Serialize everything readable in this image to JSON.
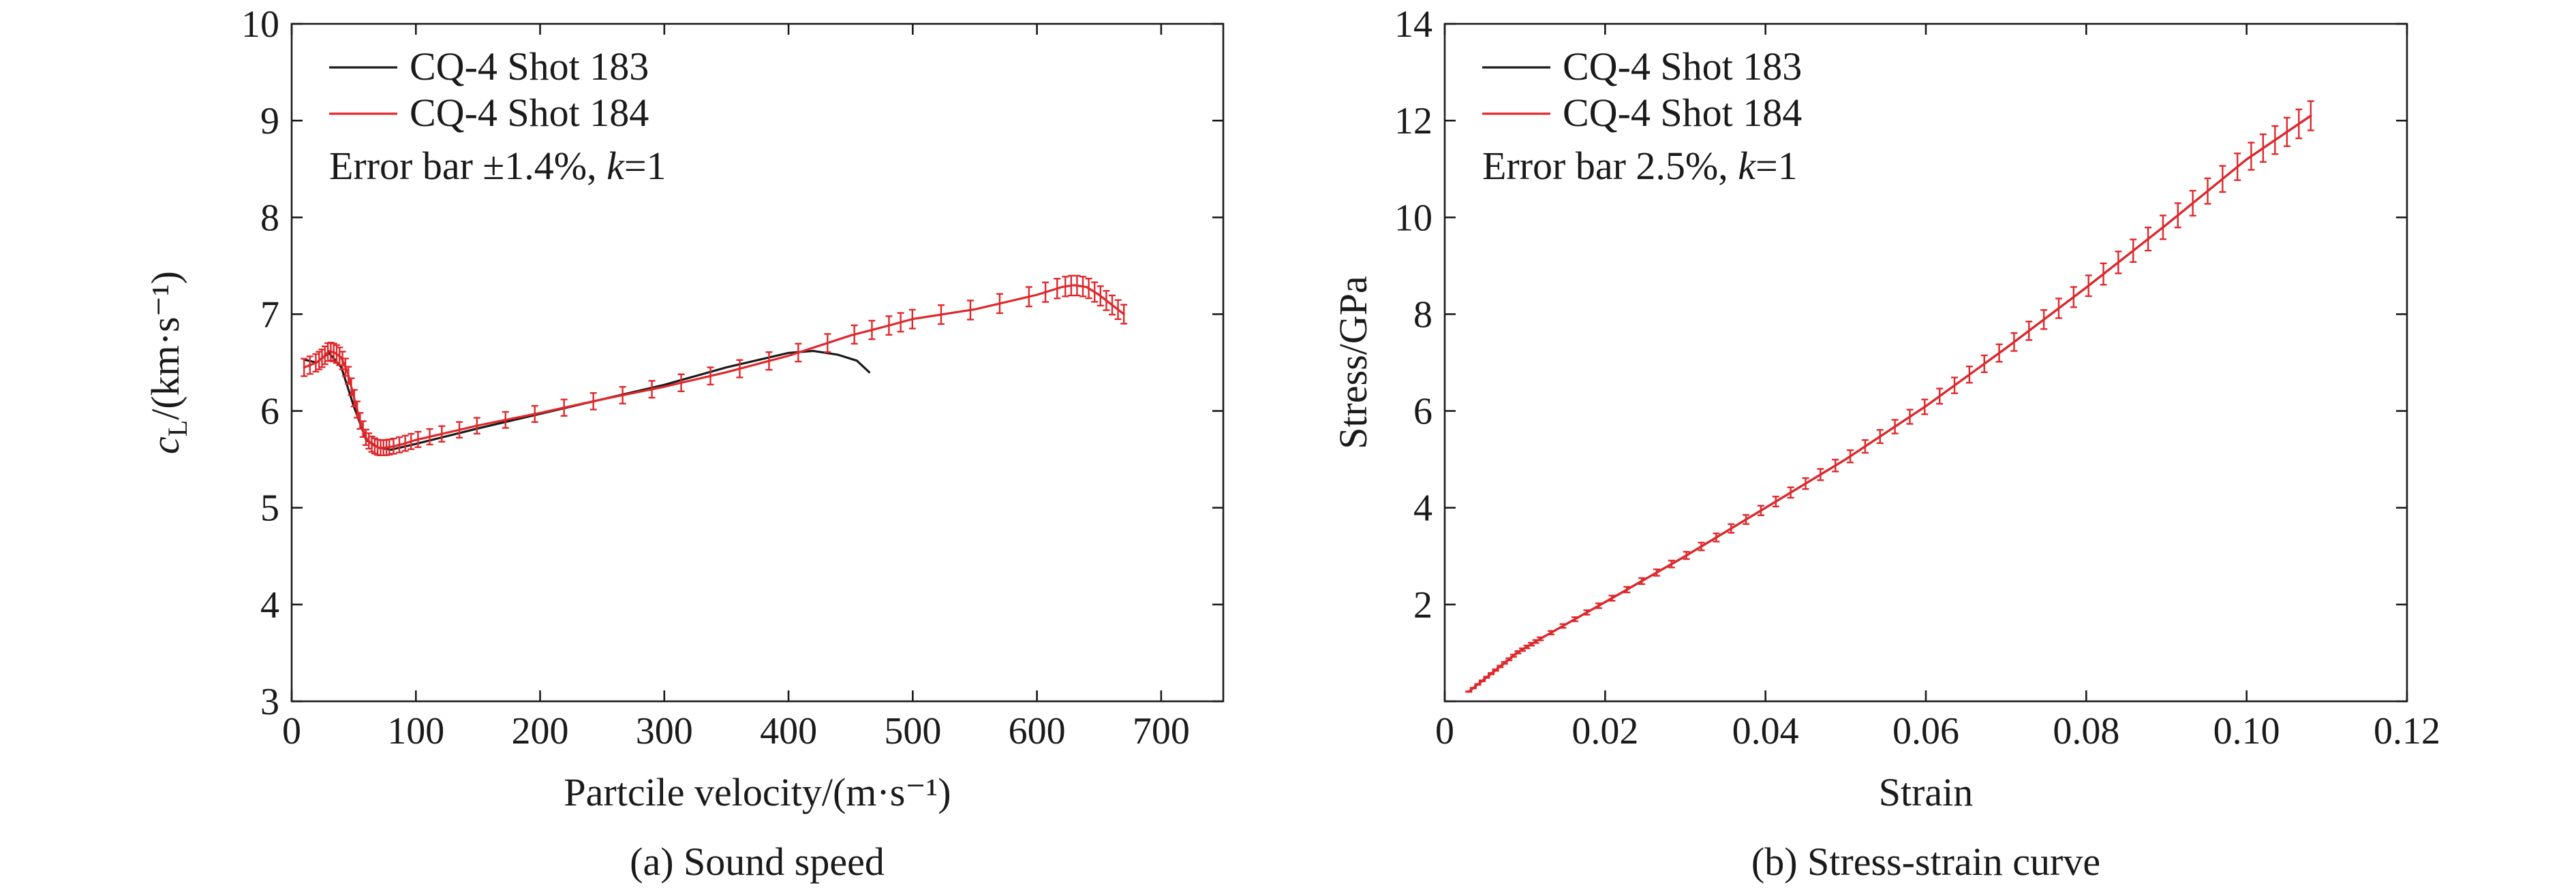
{
  "chart_data": [
    {
      "type": "line",
      "caption": "(a) Sound speed",
      "xlabel": "Partcile velocity/(m·s⁻¹)",
      "ylabel_parts": {
        "symbol": "c",
        "subscript": "L",
        "rest": "/(km·s⁻¹)"
      },
      "xlim": [
        0,
        750
      ],
      "ylim": [
        3,
        10
      ],
      "xticks": [
        0,
        100,
        200,
        300,
        400,
        500,
        600,
        700
      ],
      "yticks": [
        3,
        4,
        5,
        6,
        7,
        8,
        9,
        10
      ],
      "legend_position": "top-left",
      "annotation": {
        "text": "Error bar ±1.4%, ",
        "k": "k",
        "eq": "=1"
      },
      "error_bar_fraction": 0.014,
      "series": [
        {
          "name": "CQ-4 Shot 183",
          "color": "#1a1a1a",
          "error_bars": false,
          "x": [
            10,
            20,
            30,
            40,
            50,
            60,
            70,
            80,
            100,
            150,
            200,
            250,
            300,
            350,
            400,
            420,
            440,
            455,
            465
          ],
          "y": [
            6.53,
            6.5,
            6.6,
            6.45,
            6.05,
            5.7,
            5.62,
            5.6,
            5.66,
            5.82,
            5.97,
            6.12,
            6.27,
            6.45,
            6.6,
            6.62,
            6.58,
            6.52,
            6.4
          ]
        },
        {
          "name": "CQ-4 Shot 184",
          "color": "#e0272b",
          "error_bars": true,
          "x": [
            10,
            20,
            25,
            30,
            35,
            40,
            45,
            50,
            55,
            60,
            65,
            70,
            75,
            80,
            90,
            100,
            120,
            150,
            200,
            250,
            300,
            350,
            400,
            450,
            480,
            500,
            550,
            600,
            620,
            630,
            640,
            650,
            660,
            670
          ],
          "y": [
            6.45,
            6.5,
            6.55,
            6.62,
            6.6,
            6.55,
            6.4,
            6.15,
            5.9,
            5.72,
            5.65,
            5.62,
            5.62,
            5.63,
            5.66,
            5.7,
            5.76,
            5.85,
            5.98,
            6.12,
            6.25,
            6.4,
            6.57,
            6.78,
            6.88,
            6.95,
            7.05,
            7.2,
            7.28,
            7.3,
            7.28,
            7.2,
            7.1,
            7.0
          ]
        }
      ]
    },
    {
      "type": "line",
      "caption": "(b) Stress-strain curve",
      "xlabel": "Strain",
      "ylabel": "Stress/GPa",
      "xlim": [
        0,
        0.12
      ],
      "ylim": [
        0,
        14
      ],
      "xticks": [
        0,
        0.02,
        0.04,
        0.06,
        0.08,
        0.1,
        0.12
      ],
      "xtick_labels": [
        "0",
        "0.02",
        "0.04",
        "0.06",
        "0.08",
        "0.10",
        "0.12"
      ],
      "yticks": [
        0,
        2,
        4,
        6,
        8,
        10,
        12,
        14
      ],
      "ytick_labels": [
        "",
        "2",
        "4",
        "6",
        "8",
        "10",
        "12",
        "14"
      ],
      "legend_position": "top-left",
      "annotation": {
        "text": "Error bar 2.5%, ",
        "k": "k",
        "eq": "=1"
      },
      "error_bar_fraction": 0.025,
      "series": [
        {
          "name": "CQ-4 Shot 183",
          "color": "#1a1a1a",
          "error_bars": false,
          "x": [
            0.003,
            0.006,
            0.009,
            0.012,
            0.02,
            0.03,
            0.04,
            0.05,
            0.06,
            0.07,
            0.08,
            0.09,
            0.1,
            0.108
          ],
          "y": [
            0.2,
            0.6,
            1.0,
            1.3,
            2.05,
            3.0,
            4.0,
            5.0,
            6.1,
            7.3,
            8.55,
            9.85,
            11.2,
            12.1
          ]
        },
        {
          "name": "CQ-4 Shot 184",
          "color": "#e0272b",
          "error_bars": true,
          "x": [
            0.003,
            0.006,
            0.009,
            0.012,
            0.02,
            0.03,
            0.04,
            0.05,
            0.06,
            0.07,
            0.08,
            0.09,
            0.1,
            0.108
          ],
          "y": [
            0.2,
            0.6,
            1.0,
            1.3,
            2.05,
            3.0,
            4.0,
            5.0,
            6.1,
            7.3,
            8.55,
            9.85,
            11.2,
            12.1
          ]
        }
      ]
    }
  ]
}
